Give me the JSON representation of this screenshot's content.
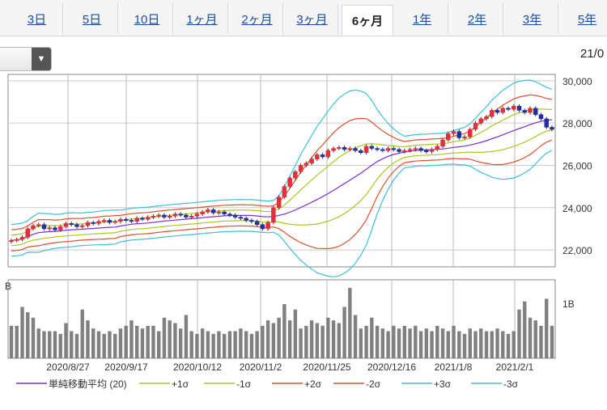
{
  "tabs": [
    {
      "label": "3日",
      "active": false
    },
    {
      "label": "5日",
      "active": false
    },
    {
      "label": "10日",
      "active": false
    },
    {
      "label": "1ヶ月",
      "active": false
    },
    {
      "label": "2ヶ月",
      "active": false
    },
    {
      "label": "3ヶ月",
      "active": false
    },
    {
      "label": "6ヶ月",
      "active": true
    },
    {
      "label": "1年",
      "active": false
    },
    {
      "label": "2年",
      "active": false
    },
    {
      "label": "3年",
      "active": false
    },
    {
      "label": "5年",
      "active": false
    }
  ],
  "header": {
    "date_partial": "21/0"
  },
  "chart_data": {
    "type": "candlestick",
    "price_axis": {
      "ticks": [
        "30,000",
        "28,000",
        "26,000",
        "24,000",
        "22,000"
      ],
      "tick_values": [
        30000,
        28000,
        26000,
        24000,
        22000
      ],
      "ylim": [
        21200,
        30300
      ]
    },
    "volume_axis": {
      "label": "B",
      "ticks": [
        "1B"
      ],
      "tick_values": [
        1
      ]
    },
    "x_tick_labels": [
      "2020/8/27",
      "2020/9/17",
      "2020/10/12",
      "2020/11/2",
      "2020/11/25",
      "2020/12/16",
      "2021/1/8",
      "2021/2/1"
    ],
    "legend": [
      {
        "label": "単純移動平均 (20)",
        "color": "#7b2fd0"
      },
      {
        "label": "+1σ",
        "color": "#a8c820"
      },
      {
        "label": "-1σ",
        "color": "#a8c820"
      },
      {
        "label": "+2σ",
        "color": "#e0502a"
      },
      {
        "label": "-2σ",
        "color": "#e0502a"
      },
      {
        "label": "+3σ",
        "color": "#3cc0d8"
      },
      {
        "label": "-3σ",
        "color": "#3cc0d8"
      }
    ],
    "close": [
      22450,
      22500,
      22600,
      23000,
      23150,
      23200,
      23000,
      23050,
      22950,
      23100,
      23250,
      23200,
      23100,
      23150,
      23300,
      23250,
      23350,
      23400,
      23300,
      23350,
      23450,
      23400,
      23350,
      23500,
      23450,
      23550,
      23600,
      23650,
      23550,
      23600,
      23700,
      23650,
      23550,
      23600,
      23700,
      23800,
      23900,
      23750,
      23800,
      23700,
      23650,
      23550,
      23500,
      23400,
      23350,
      23200,
      23000,
      23300,
      24000,
      24500,
      25000,
      25400,
      25700,
      26000,
      26100,
      26300,
      26500,
      26400,
      26700,
      26800,
      26850,
      26750,
      26800,
      26700,
      26600,
      26900,
      26800,
      26750,
      26700,
      26800,
      26750,
      26650,
      26700,
      26750,
      26800,
      26700,
      26650,
      26750,
      26900,
      27200,
      27500,
      27600,
      27300,
      27350,
      27700,
      28000,
      28200,
      28300,
      28600,
      28500,
      28700,
      28650,
      28800,
      28600,
      28500,
      28700,
      28400,
      28200,
      27800,
      27700
    ],
    "volume": [
      0.6,
      0.6,
      0.95,
      0.85,
      0.75,
      0.55,
      0.5,
      0.5,
      0.5,
      0.45,
      0.65,
      0.5,
      0.45,
      0.9,
      0.7,
      0.55,
      0.5,
      0.45,
      0.5,
      0.45,
      0.55,
      0.6,
      0.7,
      0.6,
      0.55,
      0.6,
      0.6,
      0.5,
      0.75,
      0.7,
      0.65,
      0.55,
      0.8,
      0.5,
      0.45,
      0.55,
      0.5,
      0.45,
      0.5,
      0.45,
      0.5,
      0.5,
      0.55,
      0.5,
      0.45,
      0.5,
      0.6,
      0.7,
      0.65,
      0.75,
      1.0,
      0.7,
      0.9,
      0.55,
      0.6,
      0.7,
      0.65,
      0.6,
      0.75,
      0.7,
      0.65,
      0.95,
      1.3,
      0.8,
      0.55,
      0.6,
      0.75,
      0.6,
      0.55,
      0.5,
      0.6,
      0.55,
      0.6,
      0.55,
      0.6,
      0.5,
      0.55,
      0.5,
      0.6,
      0.55,
      0.5,
      0.6,
      0.5,
      0.45,
      0.55,
      0.5,
      0.55,
      0.5,
      0.5,
      0.55,
      0.5,
      0.45,
      0.5,
      0.9,
      1.05,
      0.75,
      0.7,
      0.6,
      1.1,
      0.6
    ]
  }
}
